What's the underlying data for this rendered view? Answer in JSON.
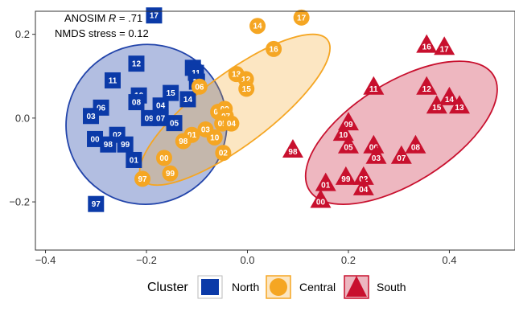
{
  "chart_data": {
    "type": "scatter",
    "title": "",
    "xlabel": "",
    "ylabel": "",
    "xlim": [
      -0.42,
      0.53
    ],
    "ylim": [
      -0.315,
      0.255
    ],
    "x_ticks": [
      -0.4,
      -0.2,
      0.0,
      0.2,
      0.4
    ],
    "x_tick_labels": [
      "−0.4",
      "−0.2",
      "0.0",
      "0.2",
      "0.4"
    ],
    "y_ticks": [
      -0.2,
      0.0,
      0.2
    ],
    "y_tick_labels": [
      "−0.2",
      "0.0",
      "0.2"
    ],
    "grid": false,
    "annotation": {
      "line1_prefix": "ANOSIM ",
      "line1_var": "R",
      "line1_suffix": " = .71",
      "line2": "NMDS stress = 0.12"
    },
    "legend": {
      "title": "Cluster",
      "placement": "bottom",
      "entries": [
        "North",
        "Central",
        "South"
      ]
    },
    "series": [
      {
        "name": "North",
        "shape": "square",
        "color": "#0b3aa8",
        "ellipse": {
          "cx": -0.2,
          "cy": -0.015,
          "rx": 0.16,
          "ry": 0.19,
          "angle_deg": 34,
          "fill": "rgba(34,68,170,0.35)",
          "stroke": "#2244aa"
        },
        "points": [
          {
            "label": "17",
            "x": -0.185,
            "y": 0.245
          },
          {
            "label": "12",
            "x": -0.22,
            "y": 0.13
          },
          {
            "label": "16",
            "x": -0.108,
            "y": 0.12
          },
          {
            "label": "11",
            "x": -0.267,
            "y": 0.09
          },
          {
            "label": "11",
            "x": -0.102,
            "y": 0.108
          },
          {
            "label": "13",
            "x": -0.1,
            "y": 0.087
          },
          {
            "label": "15",
            "x": -0.152,
            "y": 0.06
          },
          {
            "label": "10",
            "x": -0.215,
            "y": 0.054
          },
          {
            "label": "14",
            "x": -0.118,
            "y": 0.045
          },
          {
            "label": "08",
            "x": -0.22,
            "y": 0.038
          },
          {
            "label": "04",
            "x": -0.172,
            "y": 0.03
          },
          {
            "label": "06",
            "x": -0.29,
            "y": 0.025
          },
          {
            "label": "03",
            "x": -0.31,
            "y": 0.005
          },
          {
            "label": "09",
            "x": -0.195,
            "y": 0.0
          },
          {
            "label": "07",
            "x": -0.172,
            "y": 0.0
          },
          {
            "label": "05",
            "x": -0.145,
            "y": -0.012
          },
          {
            "label": "02",
            "x": -0.258,
            "y": -0.04
          },
          {
            "label": "00",
            "x": -0.302,
            "y": -0.05
          },
          {
            "label": "98",
            "x": -0.276,
            "y": -0.063
          },
          {
            "label": "99",
            "x": -0.242,
            "y": -0.063
          },
          {
            "label": "01",
            "x": -0.225,
            "y": -0.1
          },
          {
            "label": "97",
            "x": -0.3,
            "y": -0.205
          }
        ]
      },
      {
        "name": "Central",
        "shape": "circle",
        "color": "#f5a623",
        "ellipse": {
          "cx": -0.025,
          "cy": 0.02,
          "rx": 0.23,
          "ry": 0.085,
          "angle_deg": 37,
          "fill": "rgba(245,166,35,0.28)",
          "stroke": "#f5a623"
        },
        "points": [
          {
            "label": "17",
            "x": 0.107,
            "y": 0.24
          },
          {
            "label": "14",
            "x": 0.02,
            "y": 0.22
          },
          {
            "label": "16",
            "x": 0.052,
            "y": 0.165
          },
          {
            "label": "13",
            "x": -0.022,
            "y": 0.105
          },
          {
            "label": "12",
            "x": -0.003,
            "y": 0.093
          },
          {
            "label": "15",
            "x": -0.002,
            "y": 0.07
          },
          {
            "label": "06",
            "x": -0.095,
            "y": 0.075
          },
          {
            "label": "08",
            "x": -0.058,
            "y": 0.015
          },
          {
            "label": "09",
            "x": -0.045,
            "y": 0.022
          },
          {
            "label": "07",
            "x": -0.043,
            "y": 0.005
          },
          {
            "label": "05",
            "x": -0.05,
            "y": -0.013
          },
          {
            "label": "04",
            "x": -0.032,
            "y": -0.013
          },
          {
            "label": "03",
            "x": -0.083,
            "y": -0.027
          },
          {
            "label": "10",
            "x": -0.065,
            "y": -0.046
          },
          {
            "label": "01",
            "x": -0.11,
            "y": -0.04
          },
          {
            "label": "98",
            "x": -0.127,
            "y": -0.055
          },
          {
            "label": "02",
            "x": -0.048,
            "y": -0.083
          },
          {
            "label": "00",
            "x": -0.165,
            "y": -0.095
          },
          {
            "label": "99",
            "x": -0.153,
            "y": -0.132
          },
          {
            "label": "97",
            "x": -0.208,
            "y": -0.145
          }
        ]
      },
      {
        "name": "South",
        "shape": "triangle",
        "color": "#c8102e",
        "ellipse": {
          "cx": 0.305,
          "cy": -0.035,
          "rx": 0.215,
          "ry": 0.12,
          "angle_deg": 32,
          "fill": "rgba(200,16,46,0.3)",
          "stroke": "#c8102e"
        },
        "points": [
          {
            "label": "16",
            "x": 0.355,
            "y": 0.175
          },
          {
            "label": "17",
            "x": 0.39,
            "y": 0.17
          },
          {
            "label": "11",
            "x": 0.25,
            "y": 0.075
          },
          {
            "label": "12",
            "x": 0.355,
            "y": 0.075
          },
          {
            "label": "14",
            "x": 0.4,
            "y": 0.05
          },
          {
            "label": "15",
            "x": 0.375,
            "y": 0.03
          },
          {
            "label": "13",
            "x": 0.42,
            "y": 0.03
          },
          {
            "label": "09",
            "x": 0.2,
            "y": -0.01
          },
          {
            "label": "10",
            "x": 0.19,
            "y": -0.035
          },
          {
            "label": "05",
            "x": 0.2,
            "y": -0.065
          },
          {
            "label": "06",
            "x": 0.25,
            "y": -0.065
          },
          {
            "label": "03",
            "x": 0.255,
            "y": -0.09
          },
          {
            "label": "08",
            "x": 0.333,
            "y": -0.065
          },
          {
            "label": "07",
            "x": 0.305,
            "y": -0.09
          },
          {
            "label": "98",
            "x": 0.09,
            "y": -0.075
          },
          {
            "label": "02",
            "x": 0.23,
            "y": -0.14
          },
          {
            "label": "99",
            "x": 0.195,
            "y": -0.14
          },
          {
            "label": "01",
            "x": 0.155,
            "y": -0.155
          },
          {
            "label": "04",
            "x": 0.23,
            "y": -0.165
          },
          {
            "label": "00",
            "x": 0.145,
            "y": -0.195
          }
        ]
      }
    ]
  }
}
